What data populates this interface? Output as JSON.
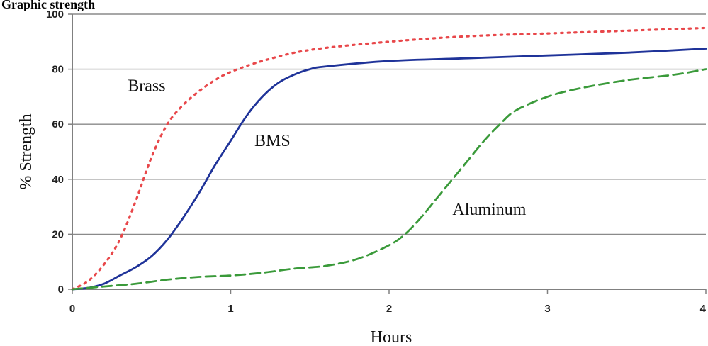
{
  "chart_data": {
    "type": "line",
    "title": "Graphic strength",
    "xlabel": "Hours",
    "ylabel": "% Strength",
    "xlim": [
      0,
      4
    ],
    "ylim": [
      0,
      100
    ],
    "x_ticks": [
      "0",
      "1",
      "2",
      "3",
      "4"
    ],
    "y_ticks": [
      "0",
      "20",
      "40",
      "60",
      "80",
      "100"
    ],
    "grid": "horizontal",
    "series": [
      {
        "name": "Brass",
        "color": "#e8474a",
        "style": "dotted",
        "points": [
          [
            0,
            0
          ],
          [
            0.1,
            3
          ],
          [
            0.2,
            9
          ],
          [
            0.3,
            18
          ],
          [
            0.4,
            32
          ],
          [
            0.5,
            48
          ],
          [
            0.6,
            60
          ],
          [
            0.7,
            67
          ],
          [
            0.8,
            72
          ],
          [
            0.9,
            76
          ],
          [
            1.0,
            79
          ],
          [
            1.2,
            83
          ],
          [
            1.5,
            87
          ],
          [
            2.0,
            90
          ],
          [
            2.5,
            92
          ],
          [
            3.0,
            93
          ],
          [
            3.5,
            94
          ],
          [
            4.0,
            95
          ]
        ]
      },
      {
        "name": "BMS",
        "color": "#1f3399",
        "style": "solid",
        "points": [
          [
            0,
            0
          ],
          [
            0.1,
            0.5
          ],
          [
            0.2,
            2
          ],
          [
            0.3,
            5
          ],
          [
            0.4,
            8
          ],
          [
            0.5,
            12
          ],
          [
            0.6,
            18
          ],
          [
            0.7,
            26
          ],
          [
            0.8,
            35
          ],
          [
            0.9,
            45
          ],
          [
            1.0,
            54
          ],
          [
            1.1,
            63
          ],
          [
            1.2,
            70
          ],
          [
            1.3,
            75
          ],
          [
            1.4,
            78
          ],
          [
            1.5,
            80
          ],
          [
            1.6,
            81
          ],
          [
            2.0,
            83
          ],
          [
            2.5,
            84
          ],
          [
            3.0,
            85
          ],
          [
            3.5,
            86
          ],
          [
            4.0,
            87.5
          ]
        ]
      },
      {
        "name": "Aluminum",
        "color": "#3a9a3a",
        "style": "dashed",
        "points": [
          [
            0,
            0
          ],
          [
            0.2,
            1
          ],
          [
            0.4,
            2
          ],
          [
            0.6,
            3.5
          ],
          [
            0.8,
            4.5
          ],
          [
            1.0,
            5
          ],
          [
            1.2,
            6
          ],
          [
            1.4,
            7.5
          ],
          [
            1.6,
            8.5
          ],
          [
            1.8,
            11
          ],
          [
            2.0,
            16
          ],
          [
            2.1,
            20
          ],
          [
            2.2,
            26
          ],
          [
            2.3,
            33
          ],
          [
            2.4,
            40
          ],
          [
            2.5,
            47
          ],
          [
            2.6,
            54
          ],
          [
            2.7,
            60
          ],
          [
            2.8,
            65
          ],
          [
            3.0,
            70
          ],
          [
            3.2,
            73
          ],
          [
            3.5,
            76
          ],
          [
            3.8,
            78
          ],
          [
            4.0,
            80
          ]
        ]
      }
    ],
    "annotations": [
      {
        "text": "Brass",
        "x": 0.35,
        "y": 72
      },
      {
        "text": "BMS",
        "x": 1.15,
        "y": 52
      },
      {
        "text": "Aluminum",
        "x": 2.4,
        "y": 27
      }
    ]
  }
}
